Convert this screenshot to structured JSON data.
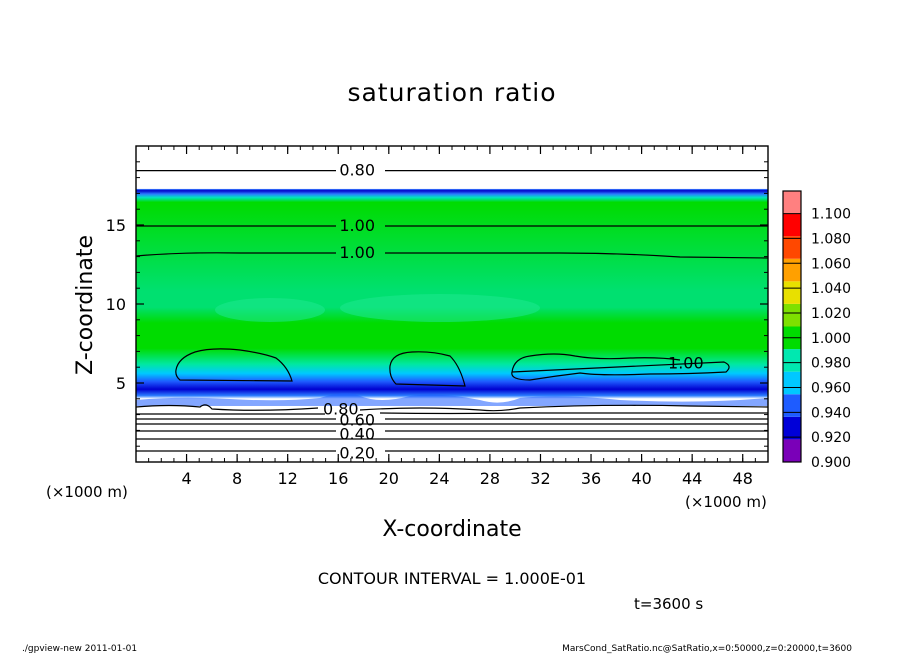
{
  "chart_data": {
    "type": "heatmap",
    "title": "saturation ratio",
    "xlabel": "X-coordinate",
    "ylabel": "Z-coordinate",
    "x_unit_label": "(×1000 m)",
    "y_unit_label": "(×1000 m)",
    "xlim": [
      0,
      50
    ],
    "ylim": [
      0,
      20
    ],
    "x_ticks": [
      4,
      8,
      12,
      16,
      20,
      24,
      28,
      32,
      36,
      40,
      44,
      48
    ],
    "y_ticks": [
      5,
      10,
      15
    ],
    "colorbar": {
      "levels": [
        "0.900",
        "0.920",
        "0.940",
        "0.960",
        "0.980",
        "1.000",
        "1.020",
        "1.040",
        "1.060",
        "1.080",
        "1.100"
      ],
      "colors": [
        "#7a00b8",
        "#0000d8",
        "#1e5cff",
        "#00c8ff",
        "#00e8b0",
        "#00dc00",
        "#7ee000",
        "#e8e000",
        "#ffa000",
        "#ff4800",
        "#ff0000",
        "#ff8080"
      ]
    },
    "contour_labels": [
      {
        "text": "0.80",
        "x": 17.5,
        "z": 18.5
      },
      {
        "text": "1.00",
        "x": 17.5,
        "z": 15.0
      },
      {
        "text": "1.00",
        "x": 17.5,
        "z": 13.3
      },
      {
        "text": "1.00",
        "x": 43.5,
        "z": 6.3
      },
      {
        "text": "0.80",
        "x": 16.2,
        "z": 3.4
      },
      {
        "text": "0.60",
        "x": 17.5,
        "z": 2.7
      },
      {
        "text": "0.40",
        "x": 17.5,
        "z": 1.8
      },
      {
        "text": "0.20",
        "x": 17.5,
        "z": 0.6
      }
    ],
    "contour_interval_text": "CONTOUR INTERVAL = 1.000E-01",
    "time_text": "t=3600 s"
  },
  "footer": {
    "left": "./gpview-new  2011-01-01",
    "right": "MarsCond_SatRatio.nc@SatRatio,x=0:50000,z=0:20000,t=3600"
  }
}
